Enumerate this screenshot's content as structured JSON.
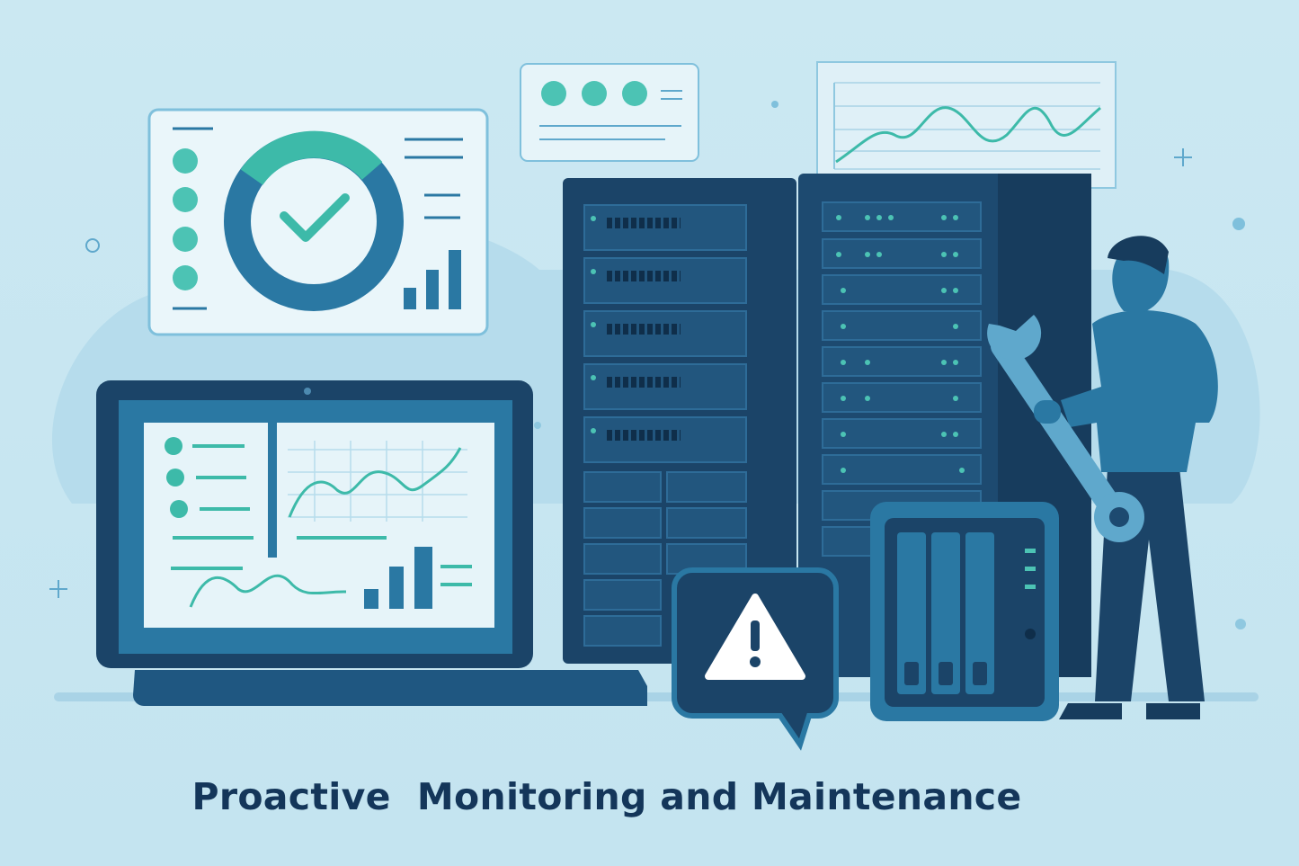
{
  "title": "Proactive  Monitoring and Maintenance",
  "colors": {
    "background": "#c8e6f1",
    "navy": "#1b4468",
    "mid_blue": "#2a78a3",
    "teal": "#4cc3b4",
    "panel": "#eaf6fa"
  },
  "icons": [
    "checkmark-donut-icon",
    "warning-icon",
    "wrench-icon",
    "server-rack-icon",
    "laptop-icon",
    "nas-device-icon",
    "technician-figure"
  ]
}
